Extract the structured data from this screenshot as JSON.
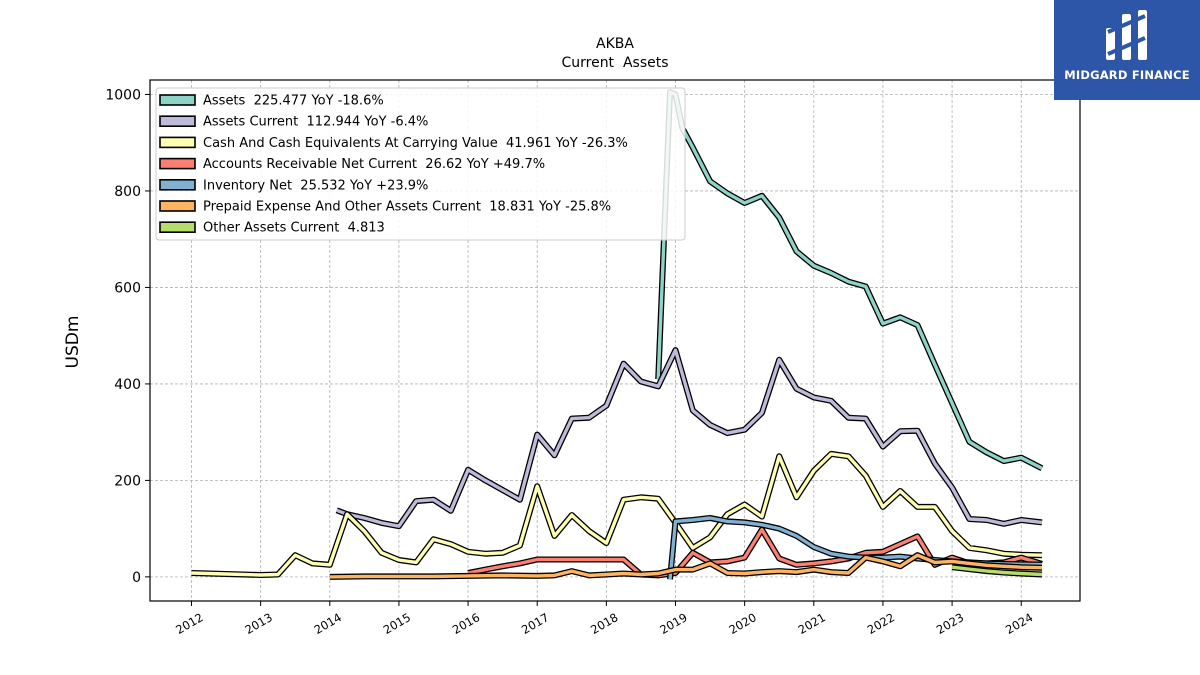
{
  "header": {
    "title": "AKBA",
    "subtitle": "Current  Assets"
  },
  "logo": {
    "text": "MIDGARD FINANCE",
    "color": "#2d56a8"
  },
  "chart_data": {
    "type": "line",
    "ylabel": "USDm",
    "xlabel": "",
    "xlim": [
      2011.4,
      2024.85
    ],
    "ylim": [
      -50,
      1030
    ],
    "x_ticks": [
      2012,
      2013,
      2014,
      2015,
      2016,
      2017,
      2018,
      2019,
      2020,
      2021,
      2022,
      2023,
      2024
    ],
    "x_tick_labels": [
      "2012",
      "2013",
      "2014",
      "2015",
      "2016",
      "2017",
      "2018",
      "2019",
      "2020",
      "2021",
      "2022",
      "2023",
      "2024"
    ],
    "y_ticks": [
      0,
      200,
      400,
      600,
      800,
      1000
    ],
    "y_tick_labels": [
      "0",
      "200",
      "400",
      "600",
      "800",
      "1000"
    ],
    "grid": true,
    "legend_position": "top-left",
    "series": [
      {
        "name": "Assets",
        "legend": "Assets  225.477 YoY -18.6%",
        "color": "#8dd3c7",
        "points": [
          [
            2018.75,
            410
          ],
          [
            2018.92,
            1005
          ],
          [
            2019.0,
            1000
          ],
          [
            2019.1,
            930
          ],
          [
            2019.25,
            890
          ],
          [
            2019.5,
            820
          ],
          [
            2019.75,
            795
          ],
          [
            2020.0,
            775
          ],
          [
            2020.25,
            790
          ],
          [
            2020.5,
            745
          ],
          [
            2020.75,
            675
          ],
          [
            2021.0,
            645
          ],
          [
            2021.25,
            630
          ],
          [
            2021.5,
            612
          ],
          [
            2021.75,
            602
          ],
          [
            2022.0,
            525
          ],
          [
            2022.25,
            538
          ],
          [
            2022.5,
            522
          ],
          [
            2022.75,
            440
          ],
          [
            2023.0,
            360
          ],
          [
            2023.25,
            280
          ],
          [
            2023.5,
            258
          ],
          [
            2023.75,
            240
          ],
          [
            2024.0,
            247
          ],
          [
            2024.3,
            225
          ]
        ]
      },
      {
        "name": "Assets Current",
        "legend": "Assets Current  112.944 YoY -6.4%",
        "color": "#bebada",
        "points": [
          [
            2014.1,
            138
          ],
          [
            2014.25,
            130
          ],
          [
            2014.5,
            122
          ],
          [
            2014.75,
            112
          ],
          [
            2015.0,
            105
          ],
          [
            2015.25,
            157
          ],
          [
            2015.5,
            160
          ],
          [
            2015.75,
            137
          ],
          [
            2016.0,
            222
          ],
          [
            2016.25,
            200
          ],
          [
            2016.5,
            180
          ],
          [
            2016.75,
            160
          ],
          [
            2017.0,
            295
          ],
          [
            2017.25,
            252
          ],
          [
            2017.5,
            328
          ],
          [
            2017.75,
            330
          ],
          [
            2018.0,
            355
          ],
          [
            2018.25,
            442
          ],
          [
            2018.5,
            405
          ],
          [
            2018.75,
            395
          ],
          [
            2019.0,
            470
          ],
          [
            2019.25,
            345
          ],
          [
            2019.5,
            315
          ],
          [
            2019.75,
            298
          ],
          [
            2020.0,
            305
          ],
          [
            2020.25,
            340
          ],
          [
            2020.5,
            450
          ],
          [
            2020.75,
            390
          ],
          [
            2021.0,
            372
          ],
          [
            2021.25,
            365
          ],
          [
            2021.5,
            330
          ],
          [
            2021.75,
            328
          ],
          [
            2022.0,
            270
          ],
          [
            2022.25,
            302
          ],
          [
            2022.5,
            303
          ],
          [
            2022.75,
            235
          ],
          [
            2023.0,
            185
          ],
          [
            2023.25,
            120
          ],
          [
            2023.5,
            118
          ],
          [
            2023.75,
            110
          ],
          [
            2024.0,
            118
          ],
          [
            2024.3,
            113
          ]
        ]
      },
      {
        "name": "Cash And Cash Equivalents At Carrying Value",
        "legend": "Cash And Cash Equivalents At Carrying Value  41.961 YoY -26.3%",
        "color": "#ffffb3",
        "points": [
          [
            2012.0,
            8
          ],
          [
            2012.5,
            6
          ],
          [
            2013.0,
            4
          ],
          [
            2013.25,
            5
          ],
          [
            2013.5,
            45
          ],
          [
            2013.75,
            28
          ],
          [
            2014.0,
            25
          ],
          [
            2014.25,
            130
          ],
          [
            2014.5,
            95
          ],
          [
            2014.75,
            50
          ],
          [
            2015.0,
            35
          ],
          [
            2015.25,
            30
          ],
          [
            2015.5,
            78
          ],
          [
            2015.75,
            68
          ],
          [
            2016.0,
            52
          ],
          [
            2016.25,
            48
          ],
          [
            2016.5,
            50
          ],
          [
            2016.75,
            65
          ],
          [
            2017.0,
            188
          ],
          [
            2017.25,
            85
          ],
          [
            2017.5,
            128
          ],
          [
            2017.75,
            95
          ],
          [
            2018.0,
            70
          ],
          [
            2018.25,
            160
          ],
          [
            2018.5,
            165
          ],
          [
            2018.75,
            162
          ],
          [
            2019.0,
            112
          ],
          [
            2019.25,
            60
          ],
          [
            2019.5,
            82
          ],
          [
            2019.75,
            130
          ],
          [
            2020.0,
            150
          ],
          [
            2020.25,
            125
          ],
          [
            2020.5,
            250
          ],
          [
            2020.75,
            165
          ],
          [
            2021.0,
            220
          ],
          [
            2021.25,
            255
          ],
          [
            2021.5,
            250
          ],
          [
            2021.75,
            210
          ],
          [
            2022.0,
            145
          ],
          [
            2022.25,
            178
          ],
          [
            2022.5,
            145
          ],
          [
            2022.75,
            145
          ],
          [
            2023.0,
            95
          ],
          [
            2023.25,
            60
          ],
          [
            2023.5,
            55
          ],
          [
            2023.75,
            48
          ],
          [
            2024.0,
            46
          ],
          [
            2024.3,
            45
          ]
        ]
      },
      {
        "name": "Accounts Receivable Net Current",
        "legend": "Accounts Receivable Net Current  26.62 YoY +49.7%",
        "color": "#fb8072",
        "points": [
          [
            2016.0,
            8
          ],
          [
            2016.25,
            15
          ],
          [
            2016.5,
            22
          ],
          [
            2016.75,
            28
          ],
          [
            2017.0,
            36
          ],
          [
            2017.25,
            36
          ],
          [
            2017.5,
            36
          ],
          [
            2017.75,
            36
          ],
          [
            2018.0,
            36
          ],
          [
            2018.25,
            36
          ],
          [
            2018.5,
            5
          ],
          [
            2018.75,
            3
          ],
          [
            2019.0,
            8
          ],
          [
            2019.25,
            50
          ],
          [
            2019.5,
            30
          ],
          [
            2019.75,
            32
          ],
          [
            2020.0,
            40
          ],
          [
            2020.25,
            98
          ],
          [
            2020.5,
            38
          ],
          [
            2020.75,
            25
          ],
          [
            2021.0,
            28
          ],
          [
            2021.25,
            32
          ],
          [
            2021.5,
            38
          ],
          [
            2021.75,
            50
          ],
          [
            2022.0,
            52
          ],
          [
            2022.25,
            68
          ],
          [
            2022.5,
            84
          ],
          [
            2022.75,
            25
          ],
          [
            2023.0,
            40
          ],
          [
            2023.25,
            28
          ],
          [
            2023.5,
            28
          ],
          [
            2023.75,
            30
          ],
          [
            2024.0,
            40
          ],
          [
            2024.3,
            27
          ]
        ]
      },
      {
        "name": "Inventory Net",
        "legend": "Inventory Net  25.532 YoY +23.9%",
        "color": "#80b1d3",
        "points": [
          [
            2018.92,
            -5
          ],
          [
            2019.0,
            115
          ],
          [
            2019.25,
            118
          ],
          [
            2019.5,
            122
          ],
          [
            2019.75,
            115
          ],
          [
            2020.0,
            113
          ],
          [
            2020.25,
            108
          ],
          [
            2020.5,
            100
          ],
          [
            2020.75,
            85
          ],
          [
            2021.0,
            62
          ],
          [
            2021.25,
            48
          ],
          [
            2021.5,
            42
          ],
          [
            2021.75,
            40
          ],
          [
            2022.0,
            40
          ],
          [
            2022.25,
            42
          ],
          [
            2022.5,
            38
          ],
          [
            2022.75,
            35
          ],
          [
            2023.0,
            32
          ],
          [
            2023.25,
            30
          ],
          [
            2023.5,
            28
          ],
          [
            2023.75,
            27
          ],
          [
            2024.0,
            26
          ],
          [
            2024.3,
            25.5
          ]
        ]
      },
      {
        "name": "Prepaid Expense And Other Assets Current",
        "legend": "Prepaid Expense And Other Assets Current  18.831 YoY -25.8%",
        "color": "#fdb462",
        "points": [
          [
            2014.0,
            0
          ],
          [
            2014.5,
            1
          ],
          [
            2015.0,
            1
          ],
          [
            2015.5,
            1
          ],
          [
            2016.0,
            2
          ],
          [
            2016.5,
            3
          ],
          [
            2017.0,
            2
          ],
          [
            2017.25,
            3
          ],
          [
            2017.5,
            12
          ],
          [
            2017.75,
            3
          ],
          [
            2018.0,
            5
          ],
          [
            2018.25,
            7
          ],
          [
            2018.5,
            5
          ],
          [
            2018.75,
            7
          ],
          [
            2019.0,
            15
          ],
          [
            2019.25,
            15
          ],
          [
            2019.5,
            28
          ],
          [
            2019.75,
            8
          ],
          [
            2020.0,
            7
          ],
          [
            2020.25,
            10
          ],
          [
            2020.5,
            12
          ],
          [
            2020.75,
            10
          ],
          [
            2021.0,
            15
          ],
          [
            2021.25,
            10
          ],
          [
            2021.5,
            8
          ],
          [
            2021.75,
            40
          ],
          [
            2022.0,
            32
          ],
          [
            2022.25,
            22
          ],
          [
            2022.5,
            45
          ],
          [
            2022.75,
            30
          ],
          [
            2023.0,
            32
          ],
          [
            2023.25,
            28
          ],
          [
            2023.5,
            24
          ],
          [
            2023.75,
            22
          ],
          [
            2024.0,
            20
          ],
          [
            2024.3,
            19
          ]
        ]
      },
      {
        "name": "Other Assets Current",
        "legend": "Other Assets Current  4.813",
        "color": "#b3de69",
        "points": [
          [
            2023.0,
            20
          ],
          [
            2023.25,
            16
          ],
          [
            2023.5,
            12
          ],
          [
            2023.75,
            9
          ],
          [
            2024.0,
            7
          ],
          [
            2024.3,
            5
          ]
        ]
      }
    ]
  }
}
